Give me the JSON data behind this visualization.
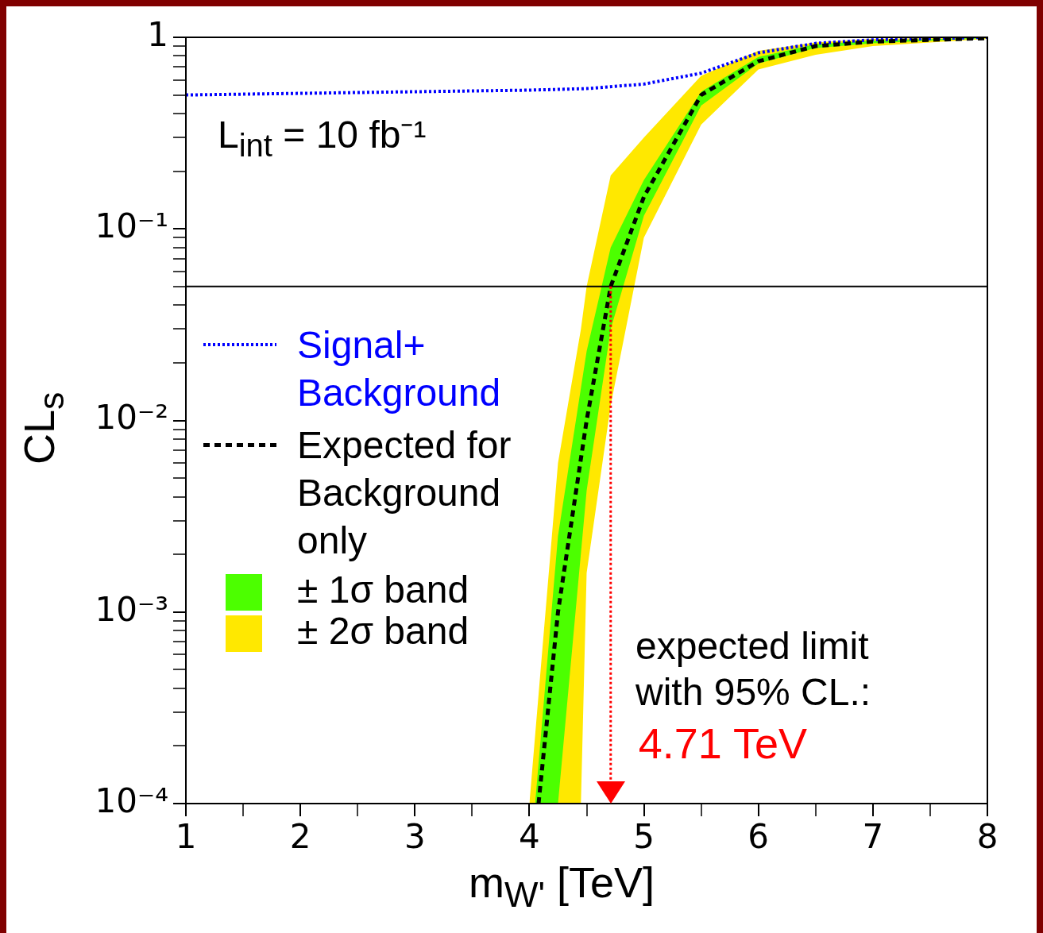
{
  "chart_data": {
    "type": "line",
    "xlabel": "m$_{W'}$ [TeV]",
    "ylabel": "CL$_{s}$",
    "log": "y",
    "xlim": [
      1,
      8
    ],
    "ylim": [
      0.0001,
      1
    ],
    "grid": false,
    "legend": "left",
    "xticks": [
      1,
      {
        "value": 1.5,
        "label": null
      },
      2,
      {
        "value": 2.5,
        "label": null
      },
      3,
      {
        "value": 3.5,
        "label": null
      },
      4,
      {
        "value": 4.5,
        "label": null
      },
      5,
      {
        "value": 5.5,
        "label": null
      },
      6,
      {
        "value": 6.5,
        "label": null
      },
      7,
      {
        "value": 7.5,
        "label": null
      },
      8
    ],
    "yticks": [
      {
        "value": 0.0001,
        "label": "10⁻⁴"
      },
      {
        "value": 0.0002,
        "label": null
      },
      {
        "value": 0.0003,
        "label": null
      },
      {
        "value": 0.0004,
        "label": null
      },
      {
        "value": 0.0005,
        "label": null
      },
      {
        "value": 0.0006,
        "label": null
      },
      {
        "value": 0.0007,
        "label": null
      },
      {
        "value": 0.0008,
        "label": null
      },
      {
        "value": 0.0009,
        "label": null
      },
      {
        "value": 0.001,
        "label": "10⁻³"
      },
      {
        "value": 0.002,
        "label": null
      },
      {
        "value": 0.003,
        "label": null
      },
      {
        "value": 0.004,
        "label": null
      },
      {
        "value": 0.005,
        "label": null
      },
      {
        "value": 0.006,
        "label": null
      },
      {
        "value": 0.007,
        "label": null
      },
      {
        "value": 0.008,
        "label": null
      },
      {
        "value": 0.009,
        "label": null
      },
      {
        "value": 0.01,
        "label": "10⁻²"
      },
      {
        "value": 0.02,
        "label": null
      },
      {
        "value": 0.03,
        "label": null
      },
      {
        "value": 0.04,
        "label": null
      },
      {
        "value": 0.05,
        "label": null
      },
      {
        "value": 0.06,
        "label": null
      },
      {
        "value": 0.07,
        "label": null
      },
      {
        "value": 0.08,
        "label": null
      },
      {
        "value": 0.09,
        "label": null
      },
      {
        "value": 0.1,
        "label": "10⁻¹"
      },
      {
        "value": 0.2,
        "label": null
      },
      {
        "value": 0.3,
        "label": null
      },
      {
        "value": 0.4,
        "label": null
      },
      {
        "value": 0.5,
        "label": null
      },
      {
        "value": 0.6,
        "label": null
      },
      {
        "value": 0.7,
        "label": null
      },
      {
        "value": 0.8,
        "label": null
      },
      {
        "value": 0.9,
        "label": null
      },
      1
    ],
    "annotations": [
      "L$_{int}$ = 10 fb⁻¹",
      "expected limit with 95% CL.:"
    ],
    "ref_lines": [
      {
        "axis": "y",
        "value": 0.05,
        "color": "#000000",
        "line_style": "solid"
      },
      {
        "axis": "x",
        "value": 4.71,
        "label": "4.71 TeV",
        "color": "#ff0000",
        "line_style": "dotted"
      }
    ],
    "series": [
      {
        "name": "Signal+ Background",
        "type": "line",
        "color": "#0000ff",
        "line_style": "dotted",
        "x": [
          1,
          2,
          3,
          4,
          4.5,
          5,
          5.5,
          6,
          6.5,
          7,
          8
        ],
        "values": [
          0.5,
          0.51,
          0.52,
          0.53,
          0.54,
          0.57,
          0.65,
          0.83,
          0.93,
          0.97,
          1.0
        ]
      },
      {
        "name": "Expected for Background only",
        "type": "line",
        "color": "#000000",
        "line_style": "dashed",
        "x": [
          4.08,
          4.25,
          4.5,
          4.71,
          5,
          5.5,
          6,
          6.5,
          7,
          8
        ],
        "values": [
          0.0001,
          0.001,
          0.01,
          0.05,
          0.147,
          0.5,
          0.75,
          0.9,
          0.95,
          0.99
        ]
      },
      {
        "name": "± 1σ band",
        "type": "area",
        "color": "#4cff00",
        "x": [
          4.05,
          4.25,
          4.5,
          4.71,
          5,
          5.5,
          6,
          6.5,
          7,
          8
        ],
        "values": [
          null,
          null,
          null,
          null,
          null,
          null,
          null,
          null,
          null,
          null
        ],
        "lower": [
          0.0001,
          0.0001,
          0.0043,
          0.03,
          0.117,
          0.44,
          0.73,
          0.88,
          0.93,
          0.99
        ],
        "upper": [
          0.0001,
          0.0025,
          0.023,
          0.08,
          0.18,
          0.52,
          0.79,
          0.92,
          0.96,
          0.995
        ]
      },
      {
        "name": "± 2σ band",
        "type": "area",
        "color": "#ffe800",
        "x": [
          4.0,
          4.25,
          4.45,
          4.5,
          4.71,
          5,
          5.5,
          6,
          6.5,
          7,
          8
        ],
        "values": [
          null,
          null,
          null,
          null,
          null,
          null,
          null,
          null,
          null,
          null,
          null
        ],
        "lower": [
          0.0001,
          0.0001,
          0.0001,
          0.0016,
          0.012,
          0.09,
          0.35,
          0.68,
          0.81,
          0.9,
          0.98
        ],
        "upper": [
          0.0001,
          0.006,
          0.03,
          0.05,
          0.19,
          0.3,
          0.63,
          0.85,
          0.94,
          0.98,
          1.0
        ]
      }
    ]
  }
}
